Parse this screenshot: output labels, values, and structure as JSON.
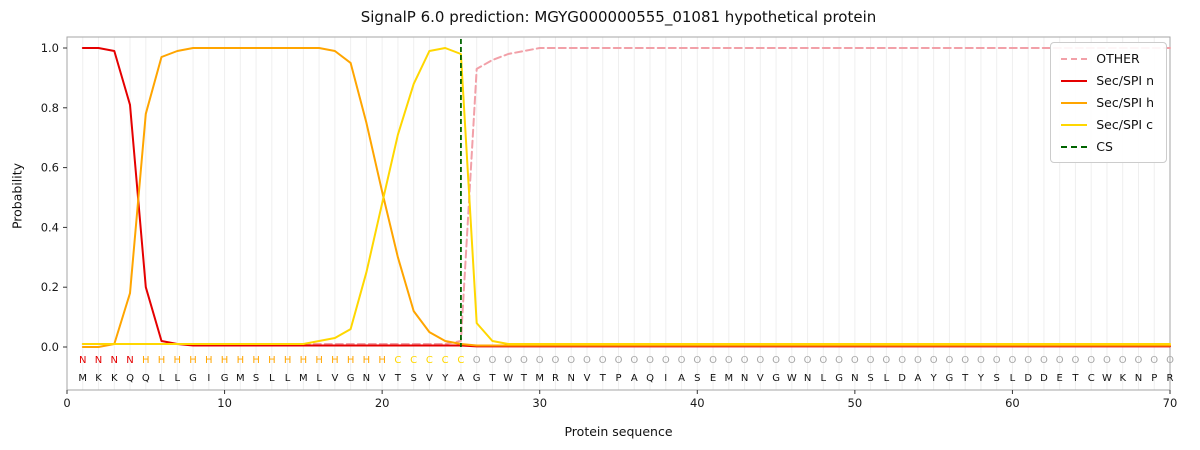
{
  "title": "SignalP 6.0 prediction: MGYG000000555_01081 hypothetical protein",
  "chart_data": {
    "type": "line",
    "xlabel": "Protein sequence",
    "ylabel": "Probability",
    "xlim": [
      0,
      70
    ],
    "ylim": [
      0,
      1.0
    ],
    "x_ticks": [
      0,
      10,
      20,
      30,
      40,
      50,
      60,
      70
    ],
    "y_ticks": [
      "0.0",
      "0.2",
      "0.4",
      "0.6",
      "0.8",
      "1.0"
    ],
    "grid": "vertical-per-residue",
    "legend_position": "upper right",
    "series": [
      {
        "name": "OTHER",
        "color": "#f2a0a8",
        "dash": true,
        "values": [
          0.01,
          0.01,
          0.01,
          0.01,
          0.01,
          0.01,
          0.01,
          0.01,
          0.01,
          0.01,
          0.01,
          0.01,
          0.01,
          0.01,
          0.01,
          0.01,
          0.01,
          0.01,
          0.01,
          0.01,
          0.01,
          0.01,
          0.01,
          0.01,
          0.02,
          0.93,
          0.96,
          0.98,
          0.99,
          1.0,
          1.0,
          1.0,
          1.0,
          1.0,
          1.0,
          1.0,
          1.0,
          1.0,
          1.0,
          1.0,
          1.0,
          1.0,
          1.0,
          1.0,
          1.0,
          1.0,
          1.0,
          1.0,
          1.0,
          1.0,
          1.0,
          1.0,
          1.0,
          1.0,
          1.0,
          1.0,
          1.0,
          1.0,
          1.0,
          1.0,
          1.0,
          1.0,
          1.0,
          1.0,
          1.0,
          1.0,
          1.0,
          1.0,
          1.0,
          1.0
        ]
      },
      {
        "name": "Sec/SPI n",
        "color": "#e50000",
        "dash": false,
        "values": [
          1.0,
          1.0,
          0.99,
          0.81,
          0.2,
          0.02,
          0.01,
          0.005,
          0.005,
          0.005,
          0.005,
          0.005,
          0.005,
          0.005,
          0.005,
          0.005,
          0.005,
          0.005,
          0.005,
          0.005,
          0.005,
          0.005,
          0.005,
          0.005,
          0.005,
          0.002,
          0.002,
          0.002,
          0.002,
          0.002,
          0.002,
          0.002,
          0.002,
          0.002,
          0.002,
          0.002,
          0.002,
          0.002,
          0.002,
          0.002,
          0.002,
          0.002,
          0.002,
          0.002,
          0.002,
          0.002,
          0.002,
          0.002,
          0.002,
          0.002,
          0.002,
          0.002,
          0.002,
          0.002,
          0.002,
          0.002,
          0.002,
          0.002,
          0.002,
          0.002,
          0.002,
          0.002,
          0.002,
          0.002,
          0.002,
          0.002,
          0.002,
          0.002,
          0.002,
          0.002
        ]
      },
      {
        "name": "Sec/SPI h",
        "color": "#ffa500",
        "dash": false,
        "values": [
          0.0,
          0.0,
          0.01,
          0.18,
          0.78,
          0.97,
          0.99,
          1.0,
          1.0,
          1.0,
          1.0,
          1.0,
          1.0,
          1.0,
          1.0,
          1.0,
          0.99,
          0.95,
          0.75,
          0.52,
          0.3,
          0.12,
          0.05,
          0.02,
          0.01,
          0.005,
          0.005,
          0.005,
          0.005,
          0.005,
          0.005,
          0.005,
          0.005,
          0.005,
          0.005,
          0.005,
          0.005,
          0.005,
          0.005,
          0.005,
          0.005,
          0.005,
          0.005,
          0.005,
          0.005,
          0.005,
          0.005,
          0.005,
          0.005,
          0.005,
          0.005,
          0.005,
          0.005,
          0.005,
          0.005,
          0.005,
          0.005,
          0.005,
          0.005,
          0.005,
          0.005,
          0.005,
          0.005,
          0.005,
          0.005,
          0.005,
          0.005,
          0.005,
          0.005,
          0.005
        ]
      },
      {
        "name": "Sec/SPI c",
        "color": "#ffd700",
        "dash": false,
        "values": [
          0.01,
          0.01,
          0.01,
          0.01,
          0.01,
          0.01,
          0.01,
          0.01,
          0.01,
          0.01,
          0.01,
          0.01,
          0.01,
          0.01,
          0.01,
          0.02,
          0.03,
          0.06,
          0.25,
          0.48,
          0.71,
          0.88,
          0.99,
          1.0,
          0.98,
          0.08,
          0.02,
          0.01,
          0.01,
          0.01,
          0.01,
          0.01,
          0.01,
          0.01,
          0.01,
          0.01,
          0.01,
          0.01,
          0.01,
          0.01,
          0.01,
          0.01,
          0.01,
          0.01,
          0.01,
          0.01,
          0.01,
          0.01,
          0.01,
          0.01,
          0.01,
          0.01,
          0.01,
          0.01,
          0.01,
          0.01,
          0.01,
          0.01,
          0.01,
          0.01,
          0.01,
          0.01,
          0.01,
          0.01,
          0.01,
          0.01,
          0.01,
          0.01,
          0.01,
          0.01
        ]
      }
    ],
    "cs": {
      "name": "CS",
      "color": "#006400",
      "dash": true,
      "position": 25
    },
    "sequence": "MKKQQLLGIGMSLLMLVGNVTSVYAGTWTMRNVTPAQIASEMNVGWNLGNSLDAYGTYSLDDETCWKNPR",
    "regions": "NNNNHHHHHHHHHHHHHHHHCCCCCOOOOOOOOOOOOOOOOOOOOOOOOOOOOOOOOOOOOOOOOOOOOO",
    "region_colors": {
      "N": "#e50000",
      "H": "#ffa500",
      "C": "#ffd700",
      "O": "#a8a8a8"
    },
    "sequence_color": "#111111"
  }
}
